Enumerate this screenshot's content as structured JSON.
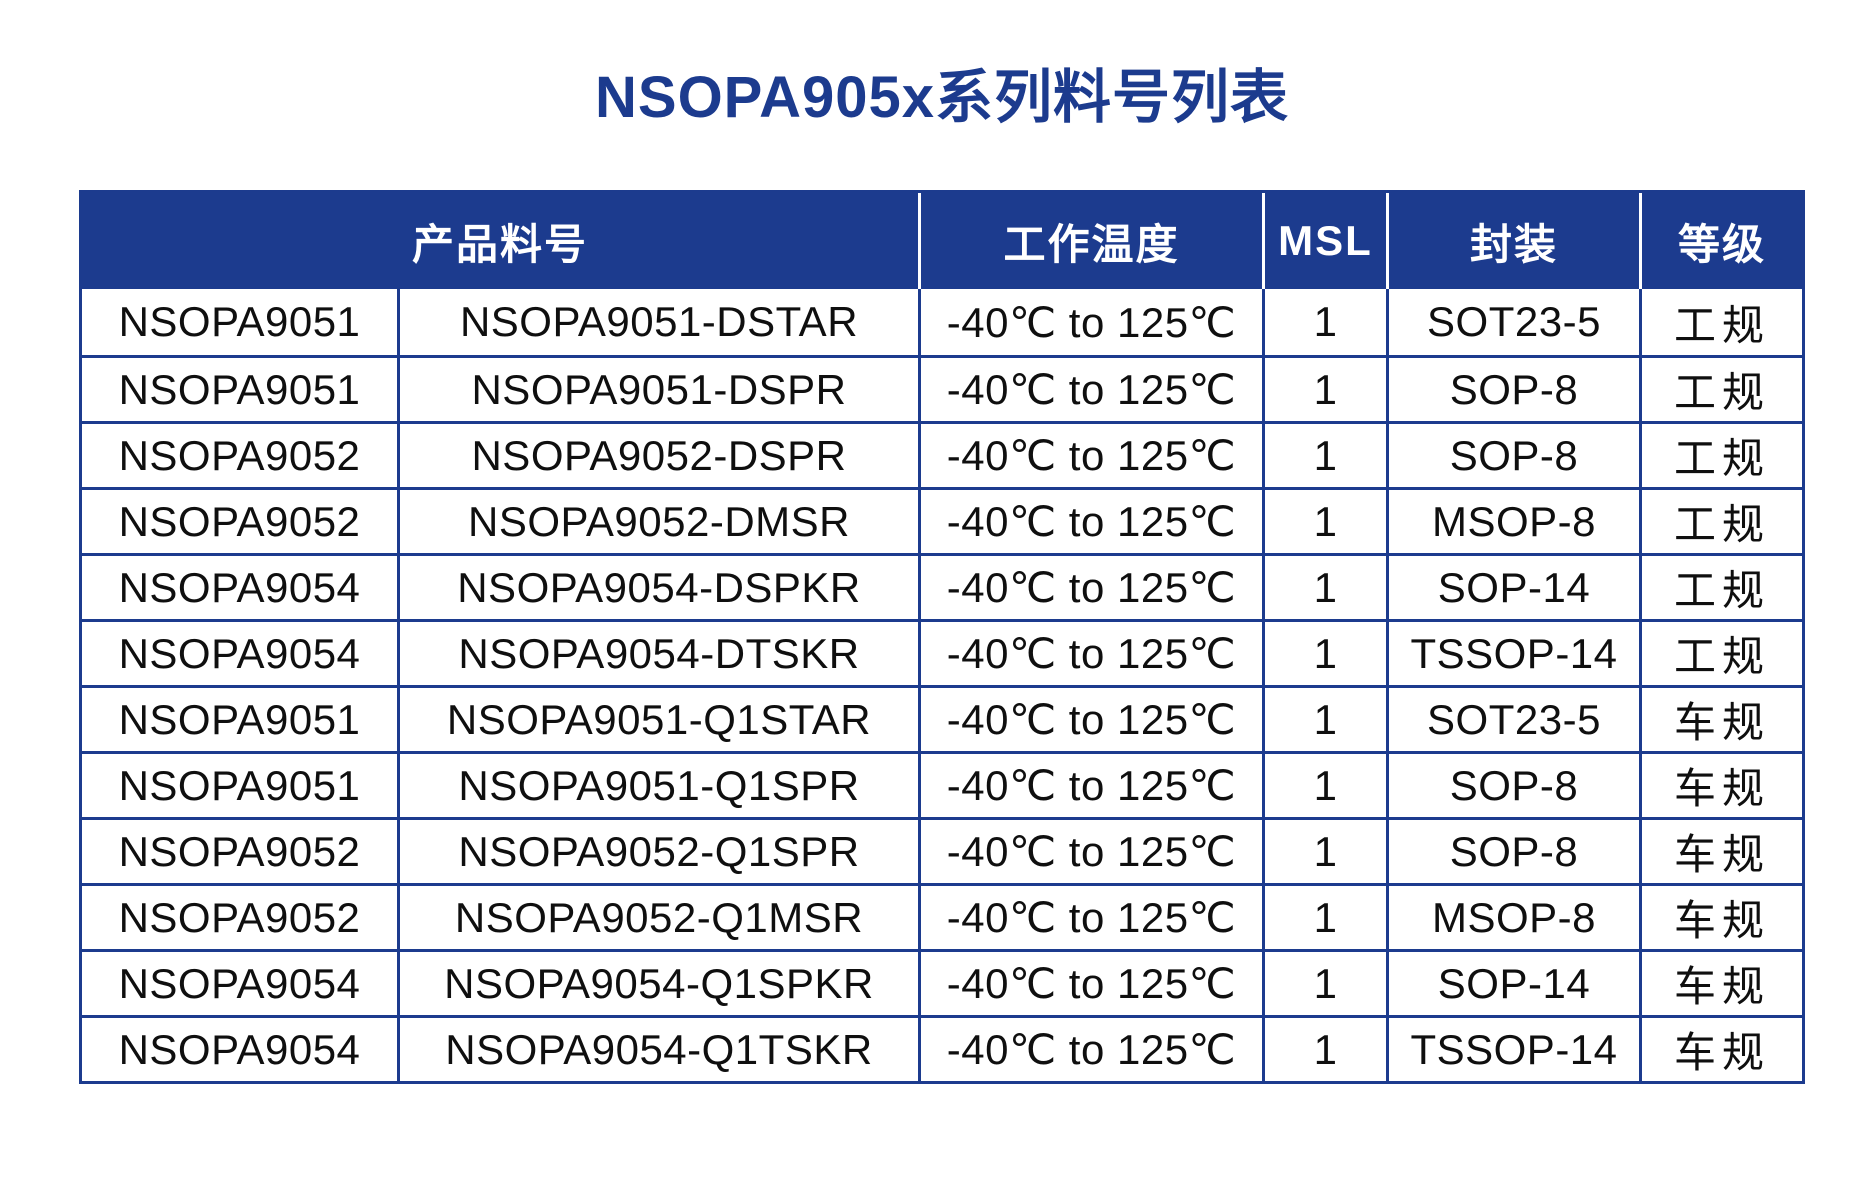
{
  "title": "NSOPA905x系列料号列表",
  "colors": {
    "accent": "#1c3b8e",
    "header_text": "#ffffff",
    "body_text": "#0f0f0f"
  },
  "table": {
    "headers": {
      "part": "产品料号",
      "temp": "工作温度",
      "msl": "MSL",
      "pkg": "封装",
      "grade": "等级"
    },
    "rows": [
      {
        "series": "NSOPA9051",
        "part": "NSOPA9051-DSTAR",
        "temp": "-40℃ to 125℃",
        "msl": "1",
        "pkg": "SOT23-5",
        "grade": "工规"
      },
      {
        "series": "NSOPA9051",
        "part": "NSOPA9051-DSPR",
        "temp": "-40℃ to 125℃",
        "msl": "1",
        "pkg": "SOP-8",
        "grade": "工规"
      },
      {
        "series": "NSOPA9052",
        "part": "NSOPA9052-DSPR",
        "temp": "-40℃ to 125℃",
        "msl": "1",
        "pkg": "SOP-8",
        "grade": "工规"
      },
      {
        "series": "NSOPA9052",
        "part": "NSOPA9052-DMSR",
        "temp": "-40℃ to 125℃",
        "msl": "1",
        "pkg": "MSOP-8",
        "grade": "工规"
      },
      {
        "series": "NSOPA9054",
        "part": "NSOPA9054-DSPKR",
        "temp": "-40℃ to 125℃",
        "msl": "1",
        "pkg": "SOP-14",
        "grade": "工规"
      },
      {
        "series": "NSOPA9054",
        "part": "NSOPA9054-DTSKR",
        "temp": "-40℃ to 125℃",
        "msl": "1",
        "pkg": "TSSOP-14",
        "grade": "工规"
      },
      {
        "series": "NSOPA9051",
        "part": "NSOPA9051-Q1STAR",
        "temp": "-40℃ to 125℃",
        "msl": "1",
        "pkg": "SOT23-5",
        "grade": "车规"
      },
      {
        "series": "NSOPA9051",
        "part": "NSOPA9051-Q1SPR",
        "temp": "-40℃ to 125℃",
        "msl": "1",
        "pkg": "SOP-8",
        "grade": "车规"
      },
      {
        "series": "NSOPA9052",
        "part": "NSOPA9052-Q1SPR",
        "temp": "-40℃ to 125℃",
        "msl": "1",
        "pkg": "SOP-8",
        "grade": "车规"
      },
      {
        "series": "NSOPA9052",
        "part": "NSOPA9052-Q1MSR",
        "temp": "-40℃ to 125℃",
        "msl": "1",
        "pkg": "MSOP-8",
        "grade": "车规"
      },
      {
        "series": "NSOPA9054",
        "part": "NSOPA9054-Q1SPKR",
        "temp": "-40℃ to 125℃",
        "msl": "1",
        "pkg": "SOP-14",
        "grade": "车规"
      },
      {
        "series": "NSOPA9054",
        "part": "NSOPA9054-Q1TSKR",
        "temp": "-40℃ to 125℃",
        "msl": "1",
        "pkg": "TSSOP-14",
        "grade": "车规"
      }
    ]
  }
}
